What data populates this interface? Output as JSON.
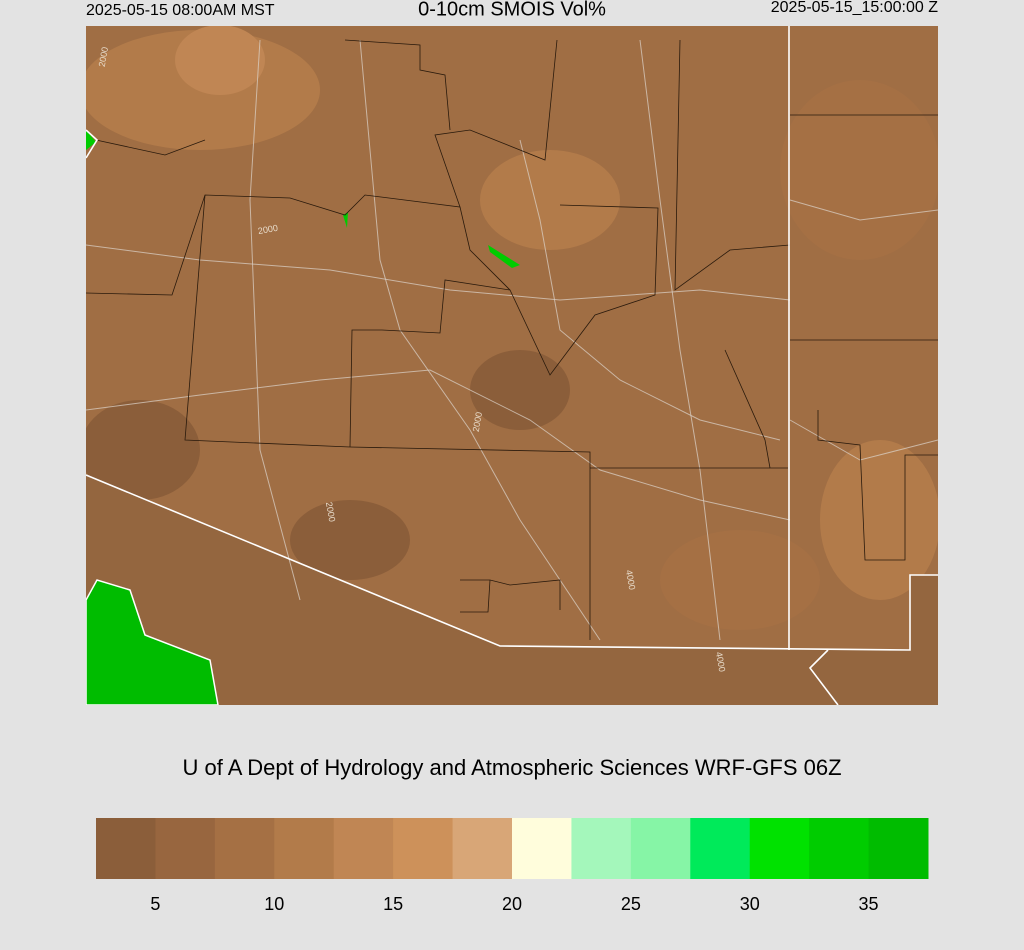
{
  "header": {
    "valid_local": "2025-05-15 08:00AM MST",
    "title": "0-10cm SMOIS Vol%",
    "valid_utc": "2025-05-15_15:00:00 Z"
  },
  "map": {
    "contour_labels": [
      "2000",
      "2000",
      "2000",
      "2000",
      "4000",
      "4000"
    ]
  },
  "footer": {
    "credit": "U of A Dept of Hydrology and Atmospheric Sciences WRF-GFS 06Z"
  },
  "colorbar": {
    "lim": [
      2.5,
      37.5
    ],
    "ticks": [
      5,
      10,
      15,
      20,
      25,
      30,
      35
    ],
    "colors": [
      "#8b5e3a",
      "#98663f",
      "#a57044",
      "#b27b4a",
      "#c08654",
      "#cd915a",
      "#d8a677",
      "#fffddc",
      "#a4f7bb",
      "#86f5a6",
      "#00ea5a",
      "#00e200",
      "#00cc00",
      "#00bc00"
    ]
  }
}
